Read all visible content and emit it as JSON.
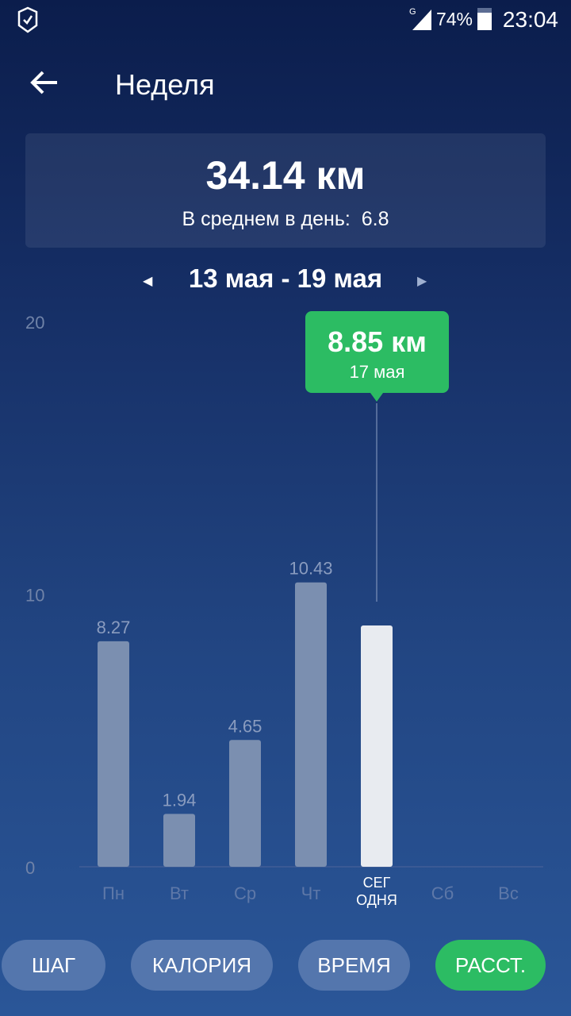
{
  "status": {
    "network": "G",
    "battery": "74%",
    "time": "23:04"
  },
  "header": {
    "title": "Неделя",
    "back_icon": "arrow-left-icon"
  },
  "summary": {
    "total": "34.14 км",
    "avg_label": "В среднем в день:",
    "avg_value": "6.8"
  },
  "range": {
    "label": "13 мая - 19 мая"
  },
  "colors": {
    "accent": "#2cbc63",
    "bar": "#7b8fb0",
    "bar_selected": "#e8ebf0"
  },
  "chart_data": {
    "type": "bar",
    "categories": [
      "Пн",
      "Вт",
      "Ср",
      "Чт",
      "СЕГ\nОДНЯ",
      "Сб",
      "Вс"
    ],
    "values": [
      8.27,
      1.94,
      4.65,
      10.43,
      8.85,
      null,
      null
    ],
    "value_labels": [
      "8.27",
      "1.94",
      "4.65",
      "10.43",
      "",
      "",
      ""
    ],
    "yticks": [
      "0",
      "10",
      "20"
    ],
    "ylim": [
      0,
      20
    ],
    "selected_index": 4,
    "tooltip": {
      "value": "8.85 км",
      "date": "17 мая"
    }
  },
  "tabs": [
    {
      "label": "ШАГ"
    },
    {
      "label": "КАЛОРИЯ"
    },
    {
      "label": "ВРЕМЯ"
    },
    {
      "label": "РАССТ.",
      "active": true
    }
  ]
}
